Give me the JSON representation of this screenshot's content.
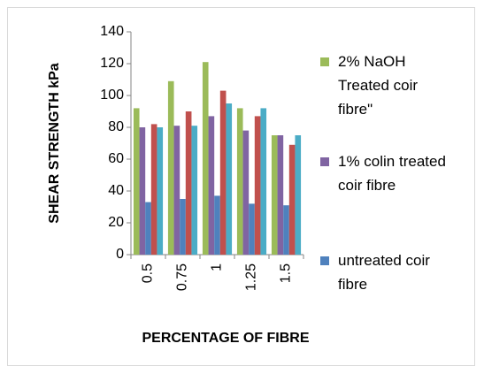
{
  "chart_data": {
    "type": "bar",
    "xlabel": "PERCENTAGE OF FIBRE",
    "ylabel": "SHEAR STRENGTH kPa",
    "categories": [
      "0.5",
      "0.75",
      "1",
      "1.25",
      "1.5"
    ],
    "series": [
      {
        "name": "2% NaOH Treated coir fibre\"",
        "color": "#9bbb59",
        "values": [
          92,
          109,
          121,
          92,
          75
        ]
      },
      {
        "name": "1% colin treated coir fibre",
        "color": "#8064a2",
        "values": [
          80,
          81,
          87,
          78,
          75
        ]
      },
      {
        "name": "untreated coir fibre",
        "color": "#4f81bd",
        "values": [
          33,
          35,
          37,
          32,
          31
        ]
      },
      {
        "color": "#c0504d",
        "values": [
          82,
          90,
          103,
          87,
          69
        ]
      },
      {
        "color": "#4bacc6",
        "values": [
          80,
          81,
          95,
          92,
          75
        ]
      }
    ],
    "ylim": [
      0,
      140
    ],
    "yticks": [
      0,
      20,
      40,
      60,
      80,
      100,
      120,
      140
    ],
    "grid": false
  }
}
